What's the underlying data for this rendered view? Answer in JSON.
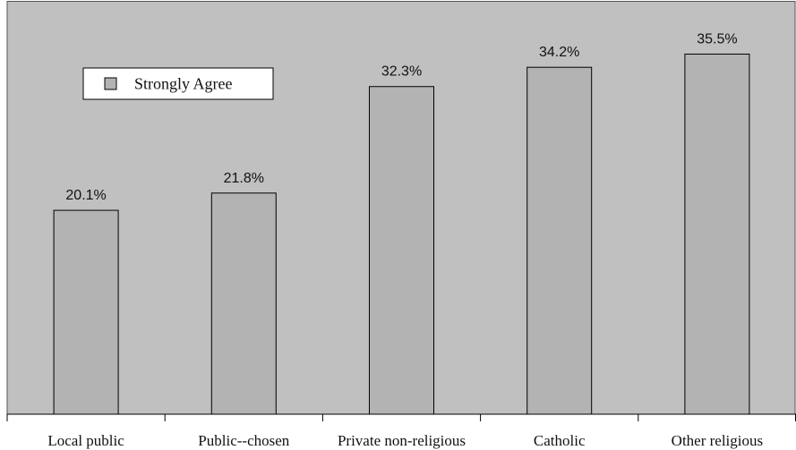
{
  "chart_data": {
    "type": "bar",
    "categories": [
      "Local public",
      "Public--chosen",
      "Private non-religious",
      "Catholic",
      "Other religious"
    ],
    "series": [
      {
        "name": "Strongly Agree",
        "color": "#b3b3b3",
        "values": [
          20.1,
          21.8,
          32.3,
          34.2,
          35.5
        ],
        "value_labels": [
          "20.1%",
          "21.8%",
          "32.3%",
          "34.2%",
          "35.5%"
        ]
      }
    ],
    "ylim": [
      0,
      40.7
    ],
    "legend": "upper left"
  }
}
